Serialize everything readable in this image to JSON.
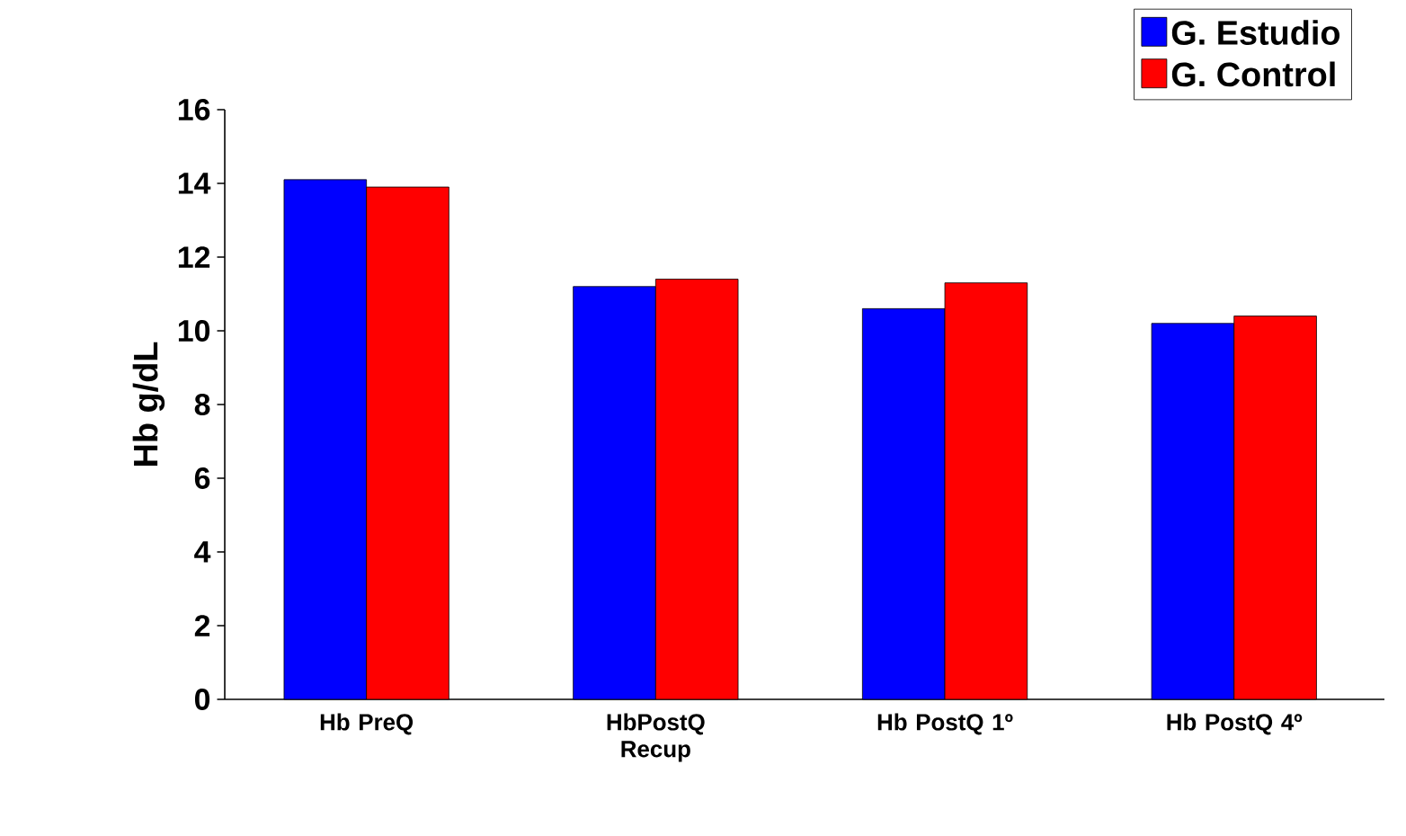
{
  "chart_data": {
    "type": "bar",
    "ylabel": "Hb g/dL",
    "categories": [
      "Hb PreQ",
      "HbPostQ Recup",
      "Hb PostQ 1º",
      "Hb PostQ 4º"
    ],
    "series": [
      {
        "name": "G. Estudio",
        "color": "#0000ff",
        "values": [
          14.1,
          11.2,
          10.6,
          10.2
        ]
      },
      {
        "name": "G. Control",
        "color": "#ff0000",
        "values": [
          13.9,
          11.4,
          11.3,
          10.4
        ]
      }
    ],
    "ylim": [
      0,
      16
    ],
    "yticks": [
      0,
      2,
      4,
      6,
      8,
      10,
      12,
      14,
      16
    ],
    "grid": false,
    "legend": "top right"
  }
}
